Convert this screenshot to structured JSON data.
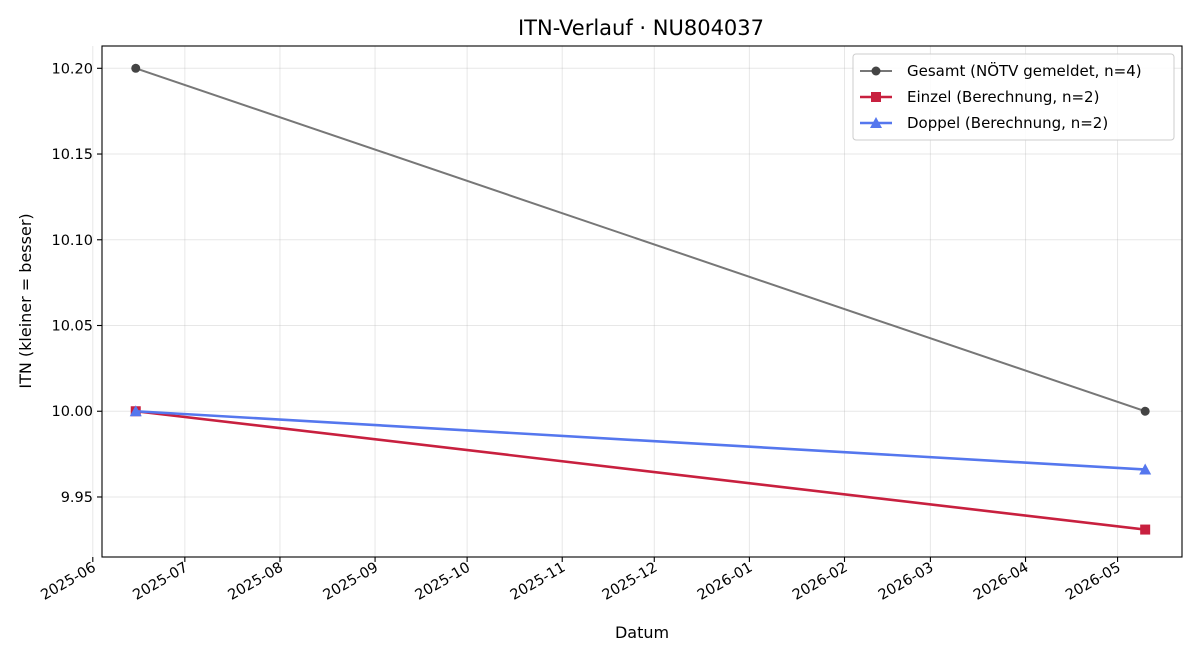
{
  "chart_data": {
    "type": "line",
    "title": "ITN-Verlauf · NU804037",
    "xlabel": "Datum",
    "ylabel": "ITN  (kleiner = besser)",
    "x_scale": "date",
    "xlim": [
      "2025-06-04",
      "2026-05-22"
    ],
    "ylim": [
      9.915,
      10.213
    ],
    "grid": true,
    "legend": "top-right",
    "x_ticks": [
      "2025-06-01",
      "2025-07-01",
      "2025-08-01",
      "2025-09-01",
      "2025-10-01",
      "2025-11-01",
      "2025-12-01",
      "2026-01-01",
      "2026-02-01",
      "2026-03-01",
      "2026-04-01",
      "2026-05-01"
    ],
    "x_tick_labels": [
      "2025-06",
      "2025-07",
      "2025-08",
      "2025-09",
      "2025-10",
      "2025-11",
      "2025-12",
      "2026-01",
      "2026-02",
      "2026-03",
      "2026-04",
      "2026-05"
    ],
    "y_ticks": [
      9.95,
      10.0,
      10.05,
      10.1,
      10.15,
      10.2
    ],
    "y_tick_labels": [
      "9.95",
      "10.00",
      "10.05",
      "10.10",
      "10.15",
      "10.20"
    ],
    "series": [
      {
        "name": "Gesamt (NÖTV gemeldet, n=4)",
        "x": [
          "2025-06-15",
          "2026-05-10"
        ],
        "y": [
          10.2,
          10.0
        ],
        "color": "#777777",
        "marker_color": "#444444",
        "marker": "circle"
      },
      {
        "name": "Einzel (Berechnung, n=2)",
        "x": [
          "2025-06-15",
          "2026-05-10"
        ],
        "y": [
          10.0,
          9.931
        ],
        "color": "#c8203f",
        "marker_color": "#c8203f",
        "marker": "square"
      },
      {
        "name": "Doppel (Berechnung, n=2)",
        "x": [
          "2025-06-15",
          "2026-05-10"
        ],
        "y": [
          10.0,
          9.966
        ],
        "color": "#5577ee",
        "marker_color": "#5577ee",
        "marker": "triangle"
      }
    ]
  }
}
